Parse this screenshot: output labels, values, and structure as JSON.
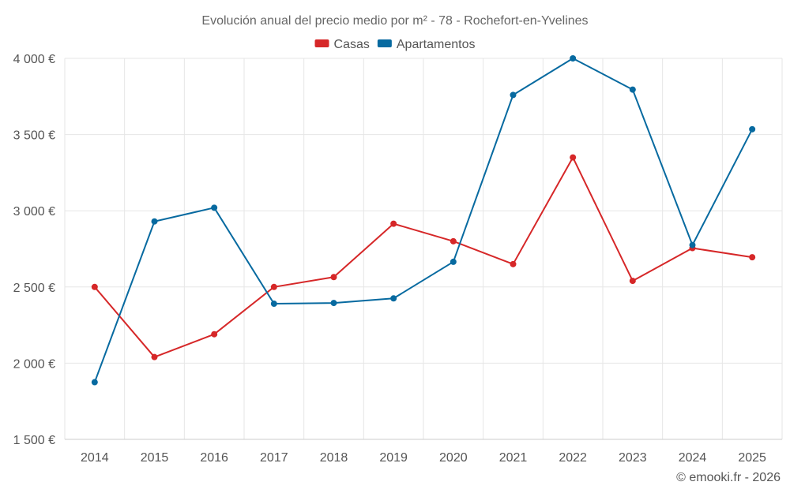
{
  "chart_data": {
    "type": "line",
    "title": "Evolución anual del precio medio por m² - 78 - Rochefort-en-Yvelines",
    "categories": [
      "2014",
      "2015",
      "2016",
      "2017",
      "2018",
      "2019",
      "2020",
      "2021",
      "2022",
      "2023",
      "2024",
      "2025"
    ],
    "ylim": [
      1500,
      4000
    ],
    "yticks": [
      1500,
      2000,
      2500,
      3000,
      3500,
      4000
    ],
    "ytick_labels": [
      "1 500 €",
      "2 000 €",
      "2 500 €",
      "3 000 €",
      "3 500 €",
      "4 000 €"
    ],
    "grid": true,
    "legend_position": "top-center",
    "series": [
      {
        "name": "Casas",
        "color": "#d62728",
        "values": [
          2500,
          2040,
          2190,
          2500,
          2565,
          2915,
          2800,
          2650,
          3350,
          2540,
          2755,
          2695
        ]
      },
      {
        "name": "Apartamentos",
        "color": "#076aa0",
        "values": [
          1875,
          2930,
          3020,
          2390,
          2395,
          2425,
          2665,
          3760,
          4000,
          3795,
          2775,
          3535
        ]
      }
    ]
  },
  "credit": "© emooki.fr - 2026"
}
